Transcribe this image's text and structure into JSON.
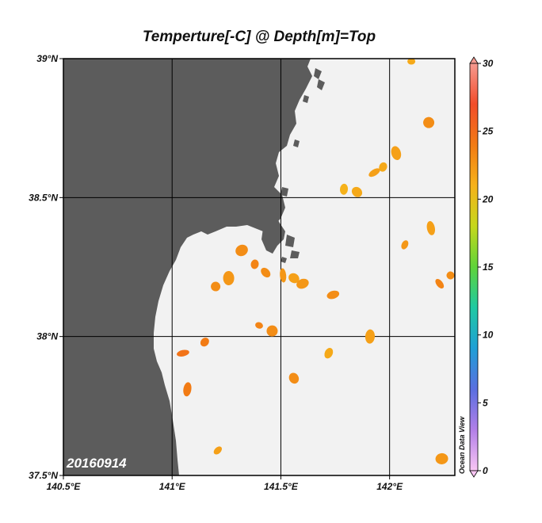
{
  "title": "Temperture[-C] @ Depth[m]=Top",
  "date_label": "20160914",
  "credit": "Ocean Data View",
  "map": {
    "lon_range": [
      140.5,
      142.3
    ],
    "lat_range": [
      37.5,
      39.0
    ],
    "lon_ticks": [
      {
        "value": 140.5,
        "label": "140.5°E"
      },
      {
        "value": 141.0,
        "label": "141°E"
      },
      {
        "value": 141.5,
        "label": "141.5°E"
      },
      {
        "value": 142.0,
        "label": "142°E"
      }
    ],
    "lat_ticks": [
      {
        "value": 39.0,
        "label": "39°N"
      },
      {
        "value": 38.5,
        "label": "38.5°N"
      },
      {
        "value": 38.0,
        "label": "38°N"
      },
      {
        "value": 37.5,
        "label": "37.5°N"
      }
    ],
    "land_color": "#5c5c5c",
    "ocean_color": "#f2f2f2",
    "grid": true
  },
  "colorbar": {
    "min": 0,
    "max": 30,
    "ticks": [
      "30",
      "25",
      "20",
      "15",
      "10",
      "5",
      "0"
    ],
    "stops": [
      "#f9c6f4",
      "#b27fe8",
      "#5a6fe0",
      "#1f9fd6",
      "#1fc9a3",
      "#5fd43a",
      "#c6d81c",
      "#f6b21a",
      "#f27b14",
      "#f24d2a",
      "#f69a90"
    ]
  },
  "chart_data": {
    "type": "scatter",
    "title": "Temperture[-C] @ Depth[m]=Top",
    "xlabel": "",
    "ylabel": "",
    "xlim": [
      140.5,
      142.3
    ],
    "ylim": [
      37.5,
      39.0
    ],
    "points": [
      {
        "lon": 142.1,
        "lat": 38.99,
        "temp": 21.5
      },
      {
        "lon": 142.18,
        "lat": 38.77,
        "temp": 23.0
      },
      {
        "lon": 142.03,
        "lat": 38.66,
        "temp": 22.0
      },
      {
        "lon": 141.97,
        "lat": 38.61,
        "temp": 21.5
      },
      {
        "lon": 141.93,
        "lat": 38.59,
        "temp": 22.0
      },
      {
        "lon": 141.79,
        "lat": 38.53,
        "temp": 21.0
      },
      {
        "lon": 141.85,
        "lat": 38.52,
        "temp": 21.5
      },
      {
        "lon": 142.19,
        "lat": 38.39,
        "temp": 22.0
      },
      {
        "lon": 142.07,
        "lat": 38.33,
        "temp": 22.5
      },
      {
        "lon": 141.32,
        "lat": 38.31,
        "temp": 23.0
      },
      {
        "lon": 141.38,
        "lat": 38.26,
        "temp": 23.5
      },
      {
        "lon": 141.43,
        "lat": 38.23,
        "temp": 23.0
      },
      {
        "lon": 141.51,
        "lat": 38.22,
        "temp": 22.5
      },
      {
        "lon": 141.56,
        "lat": 38.21,
        "temp": 22.0
      },
      {
        "lon": 141.6,
        "lat": 38.19,
        "temp": 22.5
      },
      {
        "lon": 142.28,
        "lat": 38.22,
        "temp": 23.0
      },
      {
        "lon": 142.23,
        "lat": 38.19,
        "temp": 23.5
      },
      {
        "lon": 141.26,
        "lat": 38.21,
        "temp": 22.5
      },
      {
        "lon": 141.2,
        "lat": 38.18,
        "temp": 23.0
      },
      {
        "lon": 141.74,
        "lat": 38.15,
        "temp": 23.0
      },
      {
        "lon": 141.4,
        "lat": 38.04,
        "temp": 23.5
      },
      {
        "lon": 141.46,
        "lat": 38.02,
        "temp": 23.0
      },
      {
        "lon": 141.91,
        "lat": 38.0,
        "temp": 22.0
      },
      {
        "lon": 141.15,
        "lat": 37.98,
        "temp": 24.0
      },
      {
        "lon": 141.05,
        "lat": 37.94,
        "temp": 24.5
      },
      {
        "lon": 141.72,
        "lat": 37.94,
        "temp": 21.5
      },
      {
        "lon": 141.56,
        "lat": 37.85,
        "temp": 23.0
      },
      {
        "lon": 141.07,
        "lat": 37.81,
        "temp": 24.0
      },
      {
        "lon": 141.21,
        "lat": 37.59,
        "temp": 22.0
      },
      {
        "lon": 142.24,
        "lat": 37.56,
        "temp": 22.5
      }
    ]
  }
}
